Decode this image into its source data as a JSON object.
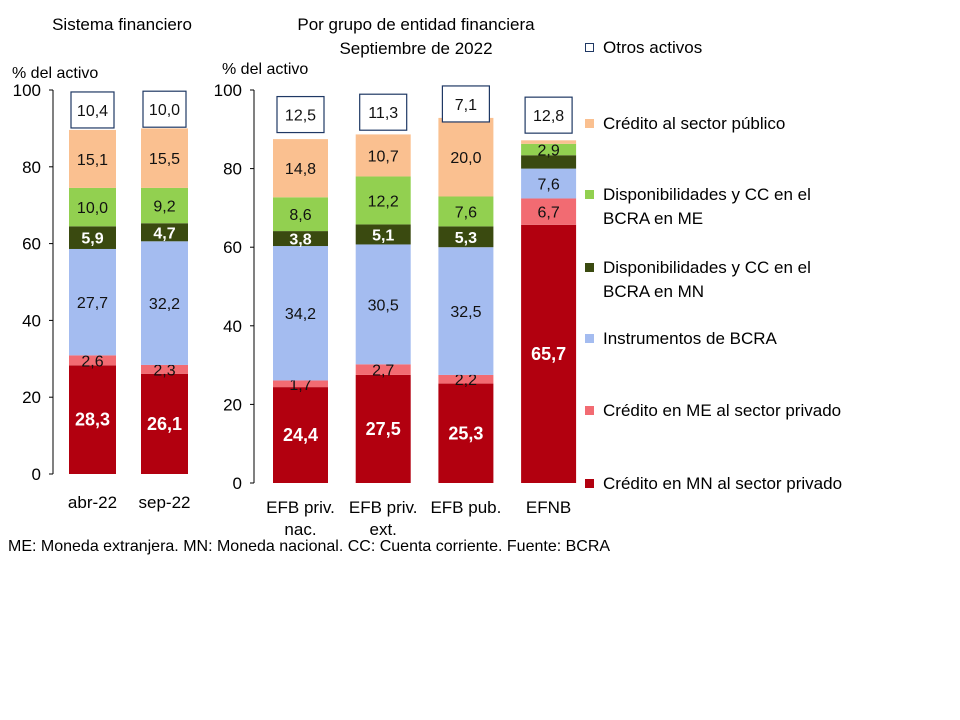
{
  "footnote": "ME: Moneda extranjera. MN: Moneda nacional. CC: Cuenta corriente. Fuente: BCRA",
  "legend": [
    {
      "label": "Otros activos",
      "color": "#ffffff",
      "border": "#1f3864"
    },
    {
      "label": "Crédito al sector público",
      "color": "#fac090",
      "border": "#fac090"
    },
    {
      "label": "Disponibilidades y CC en el BCRA en ME",
      "color": "#92d050",
      "border": "#92d050"
    },
    {
      "label": "Disponibilidades y CC en el BCRA en MN",
      "color": "#3a4a10",
      "border": "#3a4a10"
    },
    {
      "label": "Instrumentos de BCRA",
      "color": "#a4bcf0",
      "border": "#a4bcf0"
    },
    {
      "label": "Crédito en ME al sector privado",
      "color": "#f26b72",
      "border": "#f26b72"
    },
    {
      "label": "Crédito en MN al sector privado",
      "color": "#b2000f",
      "border": "#b2000f"
    }
  ],
  "chart_data": [
    {
      "type": "bar",
      "stacked": true,
      "title": "Sistema financiero",
      "ylabel": "% del activo",
      "ylim": [
        0,
        100
      ],
      "yticks": [
        "0",
        "20",
        "40",
        "60",
        "80",
        "100"
      ],
      "categories": [
        "abr-22",
        "sep-22"
      ],
      "series": [
        {
          "name": "Crédito en MN al sector privado",
          "values": [
            28.3,
            26.1
          ],
          "labels": [
            "28,3",
            "26,1"
          ]
        },
        {
          "name": "Crédito en ME al sector privado",
          "values": [
            2.6,
            2.3
          ],
          "labels": [
            "2,6",
            "2,3"
          ]
        },
        {
          "name": "Instrumentos de BCRA",
          "values": [
            27.7,
            32.2
          ],
          "labels": [
            "27,7",
            "32,2"
          ]
        },
        {
          "name": "Disponibilidades y CC en el BCRA en MN",
          "values": [
            5.9,
            4.7
          ],
          "labels": [
            "5,9",
            "4,7"
          ]
        },
        {
          "name": "Disponibilidades y CC en el BCRA en ME",
          "values": [
            10.0,
            9.2
          ],
          "labels": [
            "10,0",
            "9,2"
          ]
        },
        {
          "name": "Crédito al sector público",
          "values": [
            15.1,
            15.5
          ],
          "labels": [
            "15,1",
            "15,5"
          ]
        },
        {
          "name": "Otros activos",
          "values": [
            10.4,
            10.0
          ],
          "labels": [
            "10,4",
            "10,0"
          ]
        }
      ]
    },
    {
      "type": "bar",
      "stacked": true,
      "title": "Por grupo de entidad financiera",
      "subtitle": "Septiembre de 2022",
      "ylabel": "% del activo",
      "ylim": [
        0,
        100
      ],
      "yticks": [
        "0",
        "20",
        "40",
        "60",
        "80",
        "100"
      ],
      "categories": [
        "EFB priv. nac.",
        "EFB priv. ext.",
        "EFB pub.",
        "EFNB"
      ],
      "series": [
        {
          "name": "Crédito en MN al sector privado",
          "values": [
            24.4,
            27.5,
            25.3,
            65.7
          ],
          "labels": [
            "24,4",
            "27,5",
            "25,3",
            "65,7"
          ]
        },
        {
          "name": "Crédito en ME al sector privado",
          "values": [
            1.7,
            2.7,
            2.2,
            6.7
          ],
          "labels": [
            "1,7",
            "2,7",
            "2,2",
            "6,7"
          ]
        },
        {
          "name": "Instrumentos de BCRA",
          "values": [
            34.2,
            30.5,
            32.5,
            7.6
          ],
          "labels": [
            "34,2",
            "30,5",
            "32,5",
            "7,6"
          ]
        },
        {
          "name": "Disponibilidades y CC en el BCRA en MN",
          "values": [
            3.8,
            5.1,
            5.3,
            3.4
          ],
          "labels": [
            "3,8",
            "5,1",
            "5,3",
            ""
          ]
        },
        {
          "name": "Disponibilidades y CC en el BCRA en ME",
          "values": [
            8.6,
            12.2,
            7.6,
            2.9
          ],
          "labels": [
            "8,6",
            "12,2",
            "7,6",
            "2,9"
          ]
        },
        {
          "name": "Crédito al sector público",
          "values": [
            14.8,
            10.7,
            20.0,
            0.9
          ],
          "labels": [
            "14,8",
            "10,7",
            "20,0",
            ""
          ]
        },
        {
          "name": "Otros activos",
          "values": [
            12.5,
            11.3,
            7.1,
            12.8
          ],
          "labels": [
            "12,5",
            "11,3",
            "7,1",
            "12,8"
          ]
        }
      ]
    }
  ]
}
